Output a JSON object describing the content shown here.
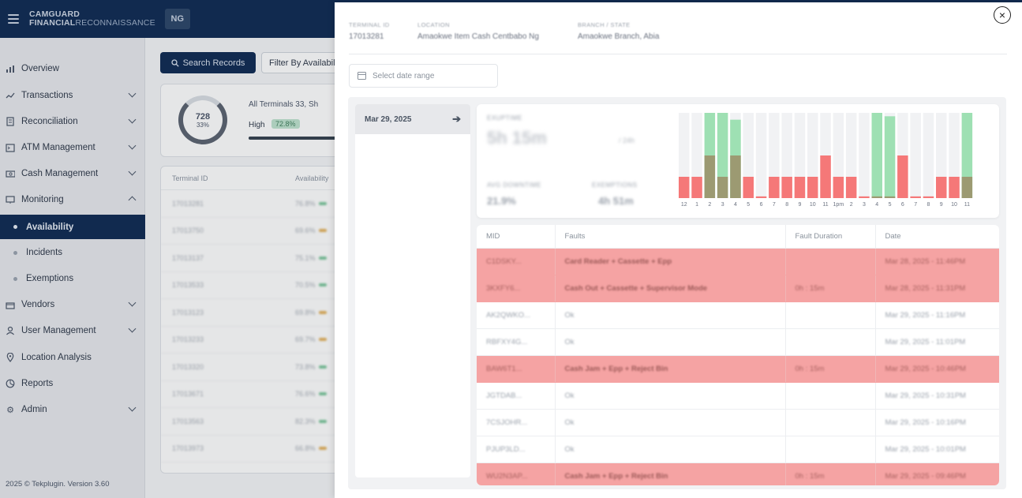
{
  "app": {
    "brand_line1": "CAMGUARD",
    "brand_line2_bold": "FINANCIAL",
    "brand_line2_regular": "RECONNAISSANCE",
    "country_badge": "NG"
  },
  "sidebar": {
    "items": [
      {
        "label": "Overview",
        "icon": "bar-chart-icon"
      },
      {
        "label": "Transactions",
        "icon": "trend-icon"
      },
      {
        "label": "Reconciliation",
        "icon": "document-icon"
      },
      {
        "label": "ATM Management",
        "icon": "terminal-icon"
      },
      {
        "label": "Cash Management",
        "icon": "cash-icon"
      },
      {
        "label": "Monitoring",
        "icon": "monitor-icon"
      },
      {
        "label": "Availability",
        "sub": true,
        "active": true
      },
      {
        "label": "Incidents",
        "sub": true
      },
      {
        "label": "Exemptions",
        "sub": true
      },
      {
        "label": "Vendors",
        "icon": "box-icon"
      },
      {
        "label": "User Management",
        "icon": "user-icon"
      },
      {
        "label": "Location Analysis",
        "icon": "pin-icon"
      },
      {
        "label": "Reports",
        "icon": "reports-icon"
      },
      {
        "label": "Admin",
        "icon": "gear-icon"
      }
    ],
    "footer": "2025 © Tekplugin. Version 3.60"
  },
  "background": {
    "search_button": "Search Records",
    "filter_button": "Filter By Availability",
    "summary": {
      "ring_value": "728",
      "ring_sub": "33%",
      "title": "All Terminals 33,  Sh",
      "high_label": "High",
      "high_pct": "72.8%"
    },
    "table_headers": [
      "Terminal ID",
      "Availability"
    ],
    "rows": [
      {
        "id": "17013281",
        "pct": "76.8%",
        "color": "green"
      },
      {
        "id": "17013750",
        "pct": "69.6%",
        "color": "amber"
      },
      {
        "id": "17013137",
        "pct": "75.1%",
        "color": "green"
      },
      {
        "id": "17013533",
        "pct": "70.5%",
        "color": "green"
      },
      {
        "id": "17013123",
        "pct": "69.8%",
        "color": "amber"
      },
      {
        "id": "17013233",
        "pct": "69.7%",
        "color": "amber"
      },
      {
        "id": "17013320",
        "pct": "73.8%",
        "color": "green"
      },
      {
        "id": "17013671",
        "pct": "76.6%",
        "color": "green"
      },
      {
        "id": "17013563",
        "pct": "82.3%",
        "color": "green"
      },
      {
        "id": "17013973",
        "pct": "66.8%",
        "color": "amber"
      }
    ]
  },
  "modal": {
    "terminal_id_label": "TERMINAL ID",
    "terminal_id": "17013281",
    "location_label": "LOCATION",
    "location": "Amaokwe Item Cash Centbabo Ng",
    "branch_label": "BRANCH / STATE",
    "branch": "Amaokwe Branch, Abia",
    "date_range_placeholder": "Select date range",
    "selected_date": "Mar 29, 2025",
    "stats": {
      "uptime_label": "EXUPTIME",
      "uptime_value": "5h 15m",
      "uptime_of": "/ 24h",
      "avg_label": "AVG DOWNTIME",
      "avg_value": "21.9%",
      "exemptions_label": "EXEMPTIONS",
      "exemptions_value": "4h 51m"
    },
    "table_headers": [
      "MID",
      "Faults",
      "Fault Duration",
      "Date"
    ],
    "rows": [
      {
        "mid": "C1DSKY...",
        "faults": "Card Reader + Cassette + Epp",
        "duration": "",
        "date": "Mar 28, 2025 - 11:46PM",
        "fault": true
      },
      {
        "mid": "3KXFY6...",
        "faults": "Cash Out + Cassette + Supervisor Mode",
        "duration": "0h : 15m",
        "date": "Mar 28, 2025 - 11:31PM",
        "fault": true
      },
      {
        "mid": "AK2QWKO...",
        "faults": "Ok",
        "duration": "",
        "date": "Mar 29, 2025 - 11:16PM",
        "fault": false
      },
      {
        "mid": "RBFXY4G...",
        "faults": "Ok",
        "duration": "",
        "date": "Mar 29, 2025 - 11:01PM",
        "fault": false
      },
      {
        "mid": "BAW6T1...",
        "faults": "Cash Jam + Epp + Reject Bin",
        "duration": "0h : 15m",
        "date": "Mar 29, 2025 - 10:46PM",
        "fault": true
      },
      {
        "mid": "JGTDAB...",
        "faults": "Ok",
        "duration": "",
        "date": "Mar 29, 2025 - 10:31PM",
        "fault": false
      },
      {
        "mid": "7CSJOHR...",
        "faults": "Ok",
        "duration": "",
        "date": "Mar 29, 2025 - 10:16PM",
        "fault": false
      },
      {
        "mid": "PJUP3LD...",
        "faults": "Ok",
        "duration": "",
        "date": "Mar 29, 2025 - 10:01PM",
        "fault": false
      },
      {
        "mid": "WU2N3AP...",
        "faults": "Cash Jam + Epp + Reject Bin",
        "duration": "0h : 15m",
        "date": "Mar 29, 2025 - 09:46PM",
        "fault": true
      }
    ]
  },
  "colors": {
    "navy": "#0e2a52",
    "up": "#9ee0b3",
    "down": "#f57878",
    "overlap": "#9c9a72",
    "fault_row": "#f5a3a3"
  },
  "chart_data": {
    "type": "bar",
    "categories": [
      "12",
      "1",
      "2",
      "3",
      "4",
      "5",
      "6",
      "7",
      "8",
      "9",
      "10",
      "11",
      "1pm",
      "2",
      "3",
      "4",
      "5",
      "6",
      "7",
      "8",
      "9",
      "10",
      "11"
    ],
    "series": [
      {
        "values": [
          0,
          0,
          1,
          1,
          0.92,
          0,
          0,
          0,
          0,
          0,
          0,
          0,
          0,
          0,
          0,
          1,
          0.96,
          0,
          0,
          0,
          0,
          0,
          1
        ]
      },
      {
        "values": [
          0.25,
          0.25,
          0.5,
          0.25,
          0.5,
          0.25,
          0.02,
          0.25,
          0.25,
          0.25,
          0.25,
          0.5,
          0.25,
          0.25,
          0.02,
          0.02,
          0.02,
          0.5,
          0.02,
          0.02,
          0.25,
          0.25,
          0.25
        ]
      }
    ],
    "ylim": [
      0,
      1
    ]
  }
}
